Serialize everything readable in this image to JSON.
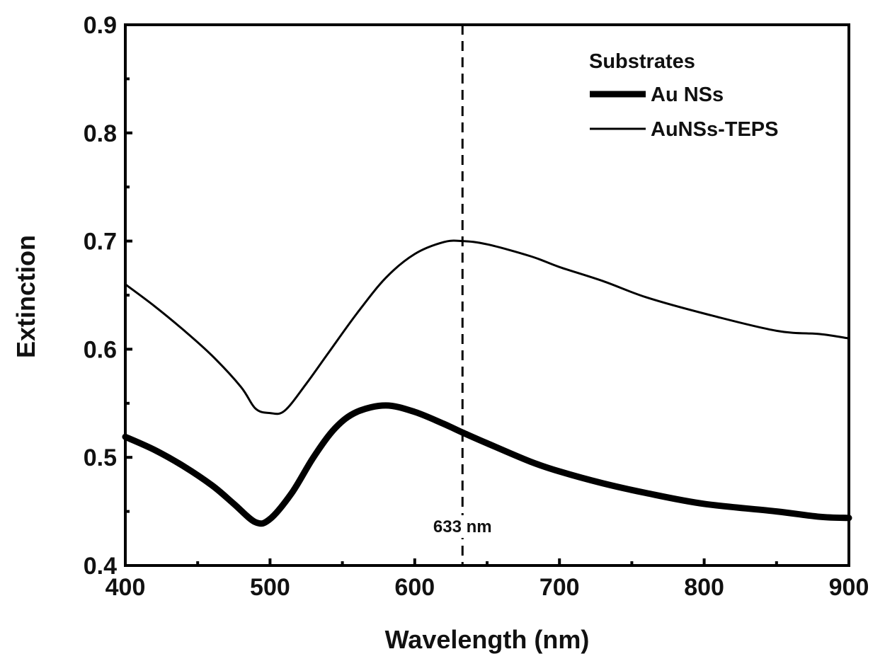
{
  "chart_data": {
    "type": "line",
    "title": "",
    "xlabel": "Wavelength (nm)",
    "ylabel": "Extinction",
    "xlim": [
      400,
      900
    ],
    "ylim": [
      0.4,
      0.9
    ],
    "x_ticks": [
      "400",
      "500",
      "600",
      "700",
      "800",
      "900"
    ],
    "y_ticks": [
      "0.4",
      "0.5",
      "0.6",
      "0.7",
      "0.8",
      "0.9"
    ],
    "legend_title": "Substrates",
    "legend_position": "top-right",
    "series": [
      {
        "name": "Au NSs",
        "line_style": "thick",
        "x": [
          400,
          420,
          440,
          460,
          475,
          490,
          500,
          515,
          530,
          545,
          560,
          580,
          600,
          620,
          633,
          650,
          680,
          700,
          730,
          760,
          800,
          850,
          880,
          900
        ],
        "values": [
          0.519,
          0.507,
          0.492,
          0.474,
          0.457,
          0.44,
          0.443,
          0.467,
          0.5,
          0.527,
          0.542,
          0.548,
          0.542,
          0.531,
          0.523,
          0.513,
          0.496,
          0.487,
          0.476,
          0.467,
          0.457,
          0.45,
          0.445,
          0.444
        ]
      },
      {
        "name": "AuNSs-TEPS",
        "line_style": "thin",
        "x": [
          400,
          420,
          440,
          460,
          480,
          490,
          500,
          510,
          525,
          540,
          560,
          580,
          600,
          620,
          633,
          650,
          680,
          700,
          730,
          760,
          800,
          850,
          880,
          900
        ],
        "values": [
          0.66,
          0.64,
          0.618,
          0.594,
          0.565,
          0.545,
          0.541,
          0.543,
          0.568,
          0.596,
          0.633,
          0.666,
          0.688,
          0.699,
          0.7,
          0.697,
          0.686,
          0.676,
          0.663,
          0.648,
          0.633,
          0.617,
          0.614,
          0.61
        ]
      }
    ],
    "annotations": [
      {
        "type": "vline",
        "x": 633,
        "style": "dashed",
        "label": "633 nm"
      }
    ]
  }
}
